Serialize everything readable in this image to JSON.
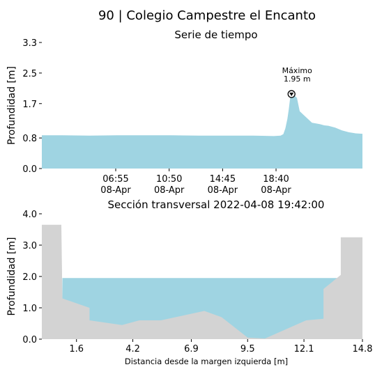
{
  "figure": {
    "suptitle": "90 | Colegio Campestre el Encanto"
  },
  "chart_data": [
    {
      "type": "area",
      "title": "Serie de tiempo",
      "ylabel": "Profundidad [m]",
      "xlabel": "",
      "ylim": [
        0,
        3.3
      ],
      "yticks": [
        0.0,
        0.8,
        1.7,
        2.5,
        3.3
      ],
      "ytick_labels": [
        "0.0",
        "0.8",
        "1.7",
        "2.5",
        "3.3"
      ],
      "x_unit": "hours since 2022-04-08 00:00",
      "xlim": [
        1.5,
        25.0
      ],
      "xticks": [
        6.9167,
        10.8333,
        14.75,
        18.6667
      ],
      "xtick_labels": [
        [
          "06:55",
          "08-Apr"
        ],
        [
          "10:50",
          "08-Apr"
        ],
        [
          "14:45",
          "08-Apr"
        ],
        [
          "18:40",
          "08-Apr"
        ]
      ],
      "fill_color": "#9fd4e2",
      "series": [
        {
          "x": [
            1.5,
            3,
            5,
            7,
            9,
            11,
            13,
            15,
            17,
            18.5,
            19.0,
            19.2,
            19.35,
            19.5,
            19.6,
            19.7,
            19.8,
            20.0,
            20.2,
            20.4,
            20.7,
            21.0,
            21.3,
            21.6,
            21.9,
            22.2,
            22.5,
            23,
            23.5,
            24,
            24.5,
            25.0
          ],
          "values": [
            0.87,
            0.87,
            0.86,
            0.87,
            0.87,
            0.87,
            0.86,
            0.86,
            0.86,
            0.85,
            0.86,
            0.9,
            1.05,
            1.3,
            1.55,
            1.85,
            1.95,
            1.92,
            1.85,
            1.5,
            1.4,
            1.3,
            1.2,
            1.18,
            1.16,
            1.13,
            1.12,
            1.07,
            1.0,
            0.95,
            0.92,
            0.91
          ]
        }
      ],
      "annotation": {
        "label": "Máximo",
        "value_text": "1.95 m",
        "x": 19.8,
        "y": 1.95
      }
    },
    {
      "type": "area",
      "title": "Sección transversal 2022-04-08 19:42:00",
      "ylabel": "Profundidad [m]",
      "xlabel": "Distancia desde la margen izquierda [m]",
      "ylim": [
        0,
        4.0
      ],
      "yticks": [
        0.0,
        1.0,
        2.0,
        3.0,
        4.0
      ],
      "ytick_labels": [
        "0.0",
        "1.0",
        "2.0",
        "3.0",
        "4.0"
      ],
      "xlim": [
        0,
        14.8
      ],
      "xticks": [
        1.6,
        4.2,
        6.9,
        9.5,
        12.1,
        14.8
      ],
      "xtick_labels": [
        "1.6",
        "4.2",
        "6.9",
        "9.5",
        "12.1",
        "14.8"
      ],
      "water_level": 1.95,
      "water_color": "#9fd4e2",
      "ground_color": "#d3d3d3",
      "ground_profile": {
        "x": [
          0,
          0.9,
          0.95,
          2.2,
          2.2,
          3.7,
          4.5,
          5.5,
          7.5,
          8.3,
          9.5,
          10.3,
          12.2,
          13.0,
          13.0,
          13.8,
          13.8,
          14.8
        ],
        "y": [
          3.65,
          3.65,
          1.3,
          1.0,
          0.6,
          0.45,
          0.6,
          0.6,
          0.9,
          0.7,
          0.05,
          0.02,
          0.6,
          0.65,
          1.6,
          2.05,
          3.25,
          3.25
        ]
      }
    }
  ]
}
